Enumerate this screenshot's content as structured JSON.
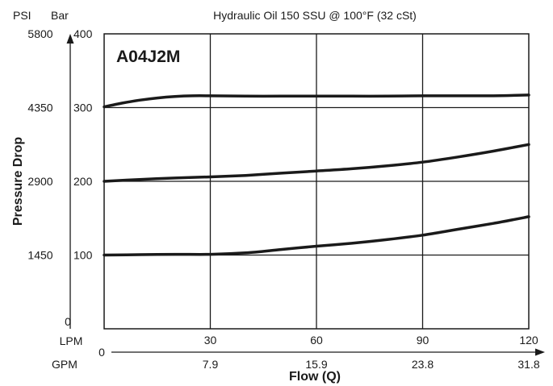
{
  "chart_data": {
    "type": "line",
    "title": "Hydraulic Oil 150 SSU @ 100°F (32 cSt)",
    "badge": "A04J2M",
    "ylabel": "Pressure Drop",
    "xlabel": "Flow (Q)",
    "y_units": {
      "psi": "PSI",
      "bar": "Bar"
    },
    "x_units": {
      "lpm": "LPM",
      "gpm": "GPM"
    },
    "xlim": [
      0,
      120
    ],
    "ylim": [
      0,
      400
    ],
    "grid": true,
    "y_ticks": [
      {
        "bar": 400,
        "bar_label": "400",
        "psi_label": "5800"
      },
      {
        "bar": 300,
        "bar_label": "300",
        "psi_label": "4350"
      },
      {
        "bar": 200,
        "bar_label": "200",
        "psi_label": "2900"
      },
      {
        "bar": 100,
        "bar_label": "100",
        "psi_label": "1450"
      },
      {
        "bar": 0,
        "bar_label": "",
        "psi_label": "0"
      }
    ],
    "x_ticks": [
      {
        "lpm": 30,
        "lpm_label": "30",
        "gpm_label": "7.9"
      },
      {
        "lpm": 60,
        "lpm_label": "60",
        "gpm_label": "15.9"
      },
      {
        "lpm": 90,
        "lpm_label": "90",
        "gpm_label": "23.8"
      },
      {
        "lpm": 120,
        "lpm_label": "120",
        "gpm_label": "31.8"
      }
    ],
    "gpm_zero_label": "0",
    "series": [
      {
        "x": [
          0,
          5,
          10,
          15,
          20,
          25,
          30,
          40,
          50,
          60,
          70,
          80,
          90,
          100,
          110,
          120
        ],
        "y": [
          301,
          306,
          310,
          313,
          315,
          316,
          316,
          315.5,
          315.5,
          315.5,
          315.5,
          315.5,
          316,
          316,
          316,
          317
        ]
      },
      {
        "x": [
          0,
          10,
          20,
          30,
          40,
          50,
          60,
          70,
          80,
          90,
          100,
          110,
          120
        ],
        "y": [
          200,
          202.5,
          204.5,
          206,
          208,
          211,
          214,
          217,
          221,
          226,
          233,
          241,
          250
        ]
      },
      {
        "x": [
          0,
          10,
          20,
          30,
          40,
          50,
          60,
          70,
          80,
          90,
          100,
          110,
          120
        ],
        "y": [
          100,
          100.5,
          101,
          101,
          103,
          107.5,
          112,
          116,
          121,
          127,
          135,
          143,
          152
        ]
      }
    ]
  }
}
